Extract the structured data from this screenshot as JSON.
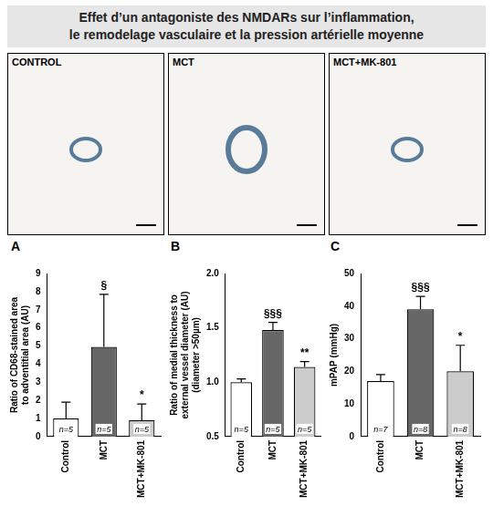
{
  "title_lines": [
    "Effet d’un antagoniste des NMDARs sur l’inflammation,",
    "le remodelage vasculaire et la pression artérielle moyenne"
  ],
  "image_panels": [
    {
      "label": "CONTROL"
    },
    {
      "label": "MCT"
    },
    {
      "label": "MCT+MK-801"
    }
  ],
  "chart_data": [
    {
      "type": "bar",
      "panel": "A",
      "y_label": [
        "Ratio of CD68-stained area",
        "to adventitial area (AU)"
      ],
      "categories": [
        "Control",
        "MCT",
        "MCT+MK-801"
      ],
      "values": [
        1.0,
        4.95,
        0.9
      ],
      "errors": [
        0.9,
        2.9,
        0.9
      ],
      "n_labels": [
        "n=5",
        "n=5",
        "n=5"
      ],
      "significance": [
        null,
        "§",
        "*"
      ],
      "colors": [
        "#ffffff",
        "#666666",
        "#cccccc"
      ],
      "ylim": [
        0,
        9
      ],
      "yticks": [
        0,
        1,
        2,
        3,
        4,
        5,
        6,
        7,
        8,
        9
      ],
      "grid": false
    },
    {
      "type": "bar",
      "panel": "B",
      "y_label": [
        "Ratio of medial thickness to",
        "external vessel diameter (AU)",
        "(diameter >50µm)"
      ],
      "categories": [
        "Control",
        "MCT",
        "MCT+MK-801"
      ],
      "values": [
        1.0,
        1.48,
        1.14
      ],
      "errors": [
        0.03,
        0.07,
        0.05
      ],
      "n_labels": [
        "n=5",
        "n=5",
        "n=5"
      ],
      "significance": [
        null,
        "§§§",
        "**"
      ],
      "colors": [
        "#ffffff",
        "#666666",
        "#cccccc"
      ],
      "ylim": [
        0.5,
        2.0
      ],
      "yticks": [
        0.5,
        {
          "value": 1.0,
          "label": "1.0"
        },
        1.5,
        {
          "value": 2.0,
          "label": "2.0"
        }
      ],
      "grid": false
    },
    {
      "type": "bar",
      "panel": "C",
      "y_label": [
        "mPAP (mmHg)"
      ],
      "categories": [
        "Control",
        "MCT",
        "MCT+MK-801"
      ],
      "values": [
        17,
        39,
        20
      ],
      "errors": [
        2,
        4,
        8
      ],
      "n_labels": [
        "n=7",
        "n=8",
        "n=8"
      ],
      "significance": [
        null,
        "§§§",
        "*"
      ],
      "colors": [
        "#ffffff",
        "#666666",
        "#cccccc"
      ],
      "ylim": [
        0,
        50
      ],
      "yticks": [
        0,
        10,
        20,
        30,
        40,
        50
      ],
      "grid": false
    }
  ]
}
